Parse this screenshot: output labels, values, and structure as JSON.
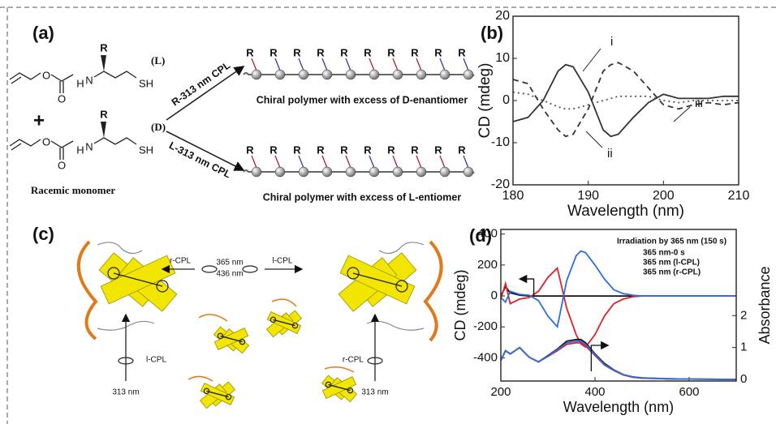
{
  "panels": {
    "a": {
      "label": "(a)",
      "substituent": "R",
      "oxygen": "O",
      "nitrogen": "N",
      "hydrogen": "H",
      "thiol": "SH",
      "config_L": "(L)",
      "config_D": "(D)",
      "plus": "+",
      "monomer_caption": "Racemic monomer",
      "arrow_R": "R-313 nm CPL",
      "arrow_L": "L-313 nm CPL",
      "polymer_D": "Chiral polymer with excess of D-enantiomer",
      "polymer_L": "Chiral polymer with excess of L-entiomer",
      "top_chain_colors": [
        "#b4202a",
        "#3a3a9a",
        "#3a3a9a",
        "#3a3a9a",
        "#3a3a9a",
        "#b4202a",
        "#b4202a",
        "#b4202a",
        "#3a3a9a",
        "#3a3a9a"
      ],
      "bottom_chain_colors": [
        "#b4202a",
        "#b4202a",
        "#3a3a9a",
        "#b4202a",
        "#b4202a",
        "#3a3a9a",
        "#b4202a",
        "#b4202a",
        "#b4202a",
        "#3a3a9a"
      ]
    },
    "b": {
      "label": "(b)"
    },
    "c": {
      "label": "(c)",
      "r_cpl": "r-CPL",
      "l_cpl": "l-CPL",
      "nm365": "365 nm",
      "nm436": "436 nm",
      "nm313": "313 nm"
    },
    "d": {
      "label": "(d)"
    }
  },
  "chart_data": [
    {
      "type": "line",
      "xlabel": "Wavelength (nm)",
      "ylabel": "CD (mdeg)",
      "x": [
        180,
        182,
        184,
        186,
        187,
        188,
        190,
        192,
        193,
        194,
        196,
        198,
        200,
        202,
        204,
        206,
        208,
        210
      ],
      "xlim": [
        180,
        210
      ],
      "xticks": [
        180,
        190,
        200,
        210
      ],
      "ylim": [
        -20,
        20
      ],
      "yticks": [
        -20,
        -10,
        0,
        10,
        20
      ],
      "annotations": [
        "i",
        "ii",
        "iii"
      ],
      "series": [
        {
          "color": "#333333",
          "dash": "solid",
          "values": [
            -5,
            -4,
            0,
            7,
            8.5,
            8,
            2,
            -7,
            -8.5,
            -8,
            -4,
            -0.5,
            1.5,
            0.5,
            0.5,
            0.5,
            1,
            1
          ]
        },
        {
          "color": "#333333",
          "dash": "dashed",
          "values": [
            5,
            4,
            -2,
            -7,
            -8.5,
            -8,
            -2,
            7,
            8.5,
            9,
            7,
            3,
            -1,
            -2,
            -1,
            -0.5,
            -1,
            -0.5
          ]
        },
        {
          "color": "#555555",
          "dash": "dotted",
          "values": [
            2,
            1.5,
            0,
            -1.5,
            -2,
            -2,
            -1,
            0,
            0.5,
            1,
            1,
            1,
            0,
            -0.5,
            0,
            0,
            0,
            0
          ]
        }
      ]
    },
    {
      "type": "line",
      "xlabel": "Wavelength (nm)",
      "ylabel": "CD (mdeg)",
      "y2label": "Absorbance",
      "legend_title": "Irradiation by 365 nm (150 s)",
      "x": [
        200,
        210,
        220,
        240,
        260,
        280,
        300,
        320,
        340,
        360,
        370,
        380,
        400,
        420,
        440,
        460,
        480,
        500,
        550,
        600,
        700
      ],
      "xlim": [
        200,
        700
      ],
      "xticks": [
        200,
        400,
        600
      ],
      "ylim": [
        -550,
        430
      ],
      "yticks": [
        -400,
        -200,
        0,
        200,
        400
      ],
      "y2lim": [
        -0.05,
        4.7
      ],
      "y2ticks": [
        0,
        1,
        2
      ],
      "series": [
        {
          "name": "365 nm-0 s",
          "color": "#111111",
          "dash": "solid",
          "values": [
            0,
            60,
            20,
            5,
            0,
            0,
            0,
            0,
            0,
            0,
            0,
            0,
            0,
            0,
            0,
            0,
            0,
            0,
            0,
            0,
            0
          ]
        },
        {
          "name": "365 nm (l-CPL)",
          "color": "#e0202a",
          "dash": "solid",
          "values": [
            -20,
            80,
            -50,
            -20,
            -10,
            30,
            120,
            180,
            -80,
            -250,
            -310,
            -330,
            -250,
            -130,
            -50,
            -20,
            -5,
            0,
            0,
            0,
            0
          ]
        },
        {
          "name": "365 nm (r-CPL)",
          "color": "#2a6ee0",
          "dash": "solid",
          "values": [
            -10,
            -40,
            30,
            10,
            5,
            -30,
            -130,
            -200,
            100,
            260,
            290,
            280,
            200,
            110,
            40,
            15,
            5,
            0,
            0,
            0,
            0
          ]
        },
        {
          "color": "#111111",
          "dash": "solid",
          "axis": "y2",
          "values": [
            0.6,
            0.9,
            0.8,
            1.0,
            0.7,
            0.55,
            0.75,
            0.95,
            1.2,
            1.25,
            1.25,
            1.15,
            0.8,
            0.5,
            0.3,
            0.15,
            0.08,
            0.05,
            0.02,
            0.01,
            0
          ]
        },
        {
          "color": "#e0202a",
          "dash": "solid",
          "axis": "y2",
          "values": [
            0.6,
            0.9,
            0.8,
            1.0,
            0.7,
            0.55,
            0.72,
            0.9,
            1.1,
            1.15,
            1.15,
            1.05,
            0.75,
            0.45,
            0.28,
            0.14,
            0.07,
            0.04,
            0.02,
            0.01,
            0
          ]
        },
        {
          "color": "#2a6ee0",
          "dash": "solid",
          "axis": "y2",
          "values": [
            0.6,
            0.9,
            0.8,
            1.0,
            0.7,
            0.55,
            0.74,
            0.93,
            1.15,
            1.2,
            1.2,
            1.1,
            0.78,
            0.47,
            0.29,
            0.15,
            0.08,
            0.05,
            0.02,
            0.01,
            0
          ]
        }
      ]
    }
  ]
}
